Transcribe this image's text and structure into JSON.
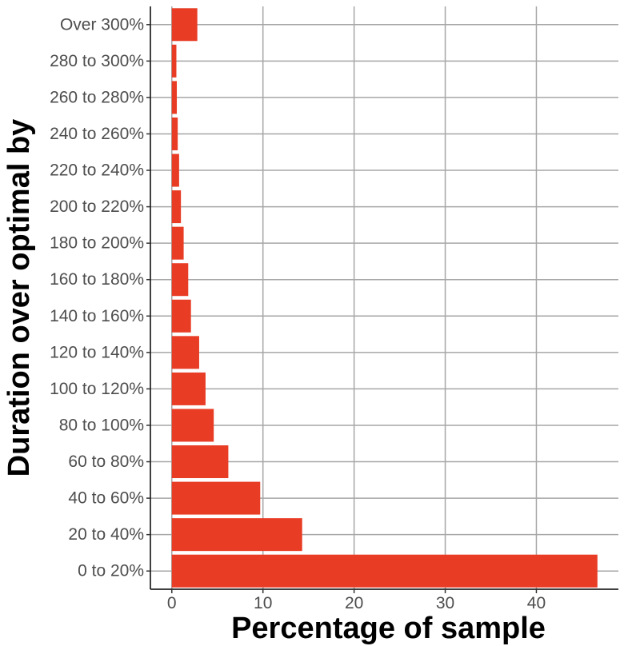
{
  "chart_data": {
    "type": "bar",
    "orientation": "horizontal",
    "categories": [
      "0 to 20%",
      "20 to 40%",
      "40 to 60%",
      "60 to 80%",
      "80 to 100%",
      "100 to 120%",
      "120 to 140%",
      "140 to 160%",
      "160 to 180%",
      "180 to 200%",
      "200 to 220%",
      "220 to 240%",
      "240 to 260%",
      "260 to 280%",
      "280 to 300%",
      "Over 300%"
    ],
    "values": [
      46.7,
      14.3,
      9.7,
      6.2,
      4.6,
      3.7,
      3.0,
      2.1,
      1.8,
      1.3,
      1.0,
      0.8,
      0.65,
      0.55,
      0.5,
      2.8
    ],
    "xlabel": "Percentage of sample",
    "ylabel": "Duration over optimal by",
    "xticks": [
      0,
      10,
      20,
      30,
      40
    ],
    "xlim": [
      -2.35,
      49.0
    ],
    "grid": true,
    "bar_color": "#e83c25"
  }
}
